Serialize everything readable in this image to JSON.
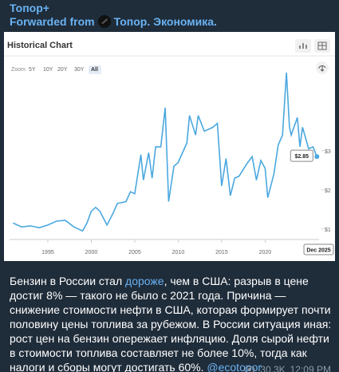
{
  "header": {
    "channel": "Топор+",
    "forwarded_label": "Forwarded from",
    "source": "Топор. Экономика."
  },
  "chart_data": {
    "type": "line",
    "title": "Historical Chart",
    "zoom_label": "Zoom",
    "zoom_options": [
      "5Y",
      "10Y",
      "20Y",
      "30Y",
      "All"
    ],
    "x": [
      1991,
      1991.5,
      1992,
      1993,
      1994,
      1995,
      1996,
      1997,
      1998,
      1999,
      1999.5,
      2000,
      2000.5,
      2001,
      2001.8,
      2002.5,
      2003,
      2004,
      2004.5,
      2005,
      2005.7,
      2006,
      2006.6,
      2007,
      2007.4,
      2008,
      2008.5,
      2008.9,
      2009.5,
      2010,
      2011,
      2011.3,
      2012,
      2012.3,
      2013,
      2014,
      2014.5,
      2015,
      2015.5,
      2016,
      2016.5,
      2017,
      2018,
      2018.5,
      2019,
      2019.5,
      2020,
      2020.3,
      2021,
      2021.5,
      2022,
      2022.45,
      2022.8,
      2023,
      2023.7,
      2024,
      2024.3,
      2025,
      2025.5,
      2025.95
    ],
    "series": [
      {
        "color": "#4aa8e0",
        "values": [
          1.15,
          1.1,
          1.05,
          1.08,
          1.03,
          1.1,
          1.2,
          1.22,
          1.05,
          0.95,
          1.15,
          1.45,
          1.55,
          1.45,
          1.1,
          1.4,
          1.65,
          1.7,
          1.95,
          1.9,
          2.9,
          2.25,
          2.95,
          2.3,
          3.1,
          3.1,
          4.1,
          1.7,
          2.6,
          2.7,
          3.2,
          3.9,
          3.4,
          3.9,
          3.5,
          3.6,
          3.7,
          2.1,
          2.8,
          1.85,
          2.3,
          2.35,
          2.7,
          2.85,
          2.25,
          2.75,
          2.55,
          1.8,
          2.4,
          3.15,
          3.4,
          5.0,
          3.6,
          3.4,
          3.85,
          3.1,
          3.6,
          3.05,
          3.1,
          2.85
        ],
        "value_labels": [
          null,
          null,
          null,
          null,
          null,
          null,
          null,
          null,
          null,
          null,
          null,
          null,
          null,
          null,
          null,
          null,
          null,
          null,
          null,
          null,
          null,
          null,
          null,
          null,
          null,
          null,
          null,
          null,
          null,
          null,
          null,
          null,
          null,
          null,
          null,
          null,
          null,
          null,
          null,
          null,
          null,
          null,
          null,
          null,
          null,
          null,
          null,
          null,
          null,
          null,
          null,
          null,
          null,
          null,
          null,
          null,
          null,
          null,
          null,
          "$2.85"
        ]
      }
    ],
    "end_date_label": "Dec 2025",
    "xlim": [
      1990.6,
      2026.2
    ],
    "xticks": [
      1995,
      2000,
      2005,
      2010,
      2015,
      2020
    ],
    "ylim": [
      0.73,
      5.63
    ],
    "yticks": [
      {
        "value": 1,
        "label": "$1"
      },
      {
        "value": 2,
        "label": "$2"
      },
      {
        "value": 3,
        "label": "$3"
      }
    ]
  },
  "message": {
    "text_before": "Бензин в России стал ",
    "link": "дороже",
    "text_after": ", чем в США: разрыв в цене достиг 8% — такого не было с 2021 года. Причина — снижение стоимости нефти в США, которая формирует почти половину цены топлива за рубежом. В России ситуация иная: рост цен на бензин опережает инфляцию. Доля сырой нефти в стоимости топлива составляет не более 10%, тогда как налоги и сборы могут достигать 60%. ",
    "handle": "@ecotopor",
    "views": "30.3K",
    "time": "12:09 PM"
  }
}
